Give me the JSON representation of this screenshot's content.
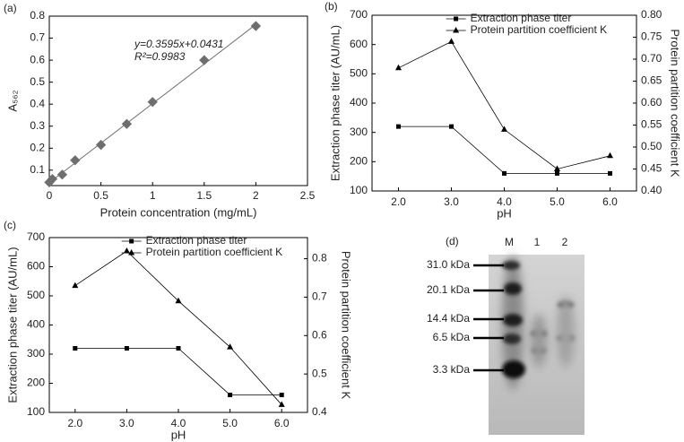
{
  "chart_data": [
    {
      "type": "scatter",
      "panel_label": "(a)",
      "x": [
        0,
        0.03,
        0.125,
        0.25,
        0.5,
        0.75,
        1,
        1.5,
        2
      ],
      "values": [
        0.045,
        0.06,
        0.08,
        0.145,
        0.215,
        0.31,
        0.41,
        0.6,
        0.755
      ],
      "color": "#6e6e6e",
      "xlim": [
        0,
        2.5
      ],
      "xticks": [
        0,
        0.5,
        1,
        1.5,
        2,
        2.5
      ],
      "ylim": [
        0.03,
        0.8
      ],
      "yticks": [
        0.1,
        0.2,
        0.3,
        0.4,
        0.5,
        0.6,
        0.7,
        0.8
      ],
      "xlabel": "Protein concentration (mg/mL)",
      "ylabel": "A₅₆₂",
      "fit": {
        "slope": 0.3595,
        "intercept": 0.0431,
        "color": "#6e6e6e"
      },
      "annotations": [
        "y=0.3595x+0.0431",
        "R²=0.9983"
      ]
    },
    {
      "type": "line",
      "panel_label": "(b)",
      "categories": [
        "2.0",
        "3.0",
        "4.0",
        "5.0",
        "6.0"
      ],
      "series": [
        {
          "name": "Extraction phase titer",
          "color": "#000000",
          "marker": "square",
          "values": [
            320,
            320,
            160,
            160,
            160
          ]
        },
        {
          "name": "Protein partition coefficient K",
          "color": "#000000",
          "marker": "triangle",
          "axis": "y2",
          "values": [
            0.68,
            0.74,
            0.54,
            0.45,
            0.48
          ]
        }
      ],
      "ylim": [
        100,
        700
      ],
      "yticks": [
        100,
        200,
        300,
        400,
        500,
        600,
        700
      ],
      "y2lim": [
        0.4,
        0.8
      ],
      "y2ticks": [
        {
          "value": 0.4,
          "label": "0.40"
        },
        {
          "value": 0.45,
          "label": "0.45"
        },
        {
          "value": 0.5,
          "label": "0.50"
        },
        {
          "value": 0.55,
          "label": "0.55"
        },
        {
          "value": 0.6,
          "label": "0.60"
        },
        {
          "value": 0.65,
          "label": "0.65"
        },
        {
          "value": 0.7,
          "label": "0.70"
        },
        {
          "value": 0.75,
          "label": "0.75"
        },
        {
          "value": 0.8,
          "label": "0.80"
        }
      ],
      "xlabel": "pH",
      "ylabel": "Extraction phase titer (AU/mL)",
      "y2label": "Protein partition coefficient K"
    },
    {
      "type": "line",
      "panel_label": "(c)",
      "categories": [
        "2.0",
        "3.0",
        "4.0",
        "5.0",
        "6.0"
      ],
      "series": [
        {
          "name": "Extraction phase titer",
          "color": "#000000",
          "marker": "square",
          "values": [
            320,
            320,
            320,
            160,
            160
          ]
        },
        {
          "name": "Protein partition coefficient K",
          "color": "#000000",
          "marker": "triangle",
          "axis": "y2",
          "values": [
            0.73,
            0.82,
            0.69,
            0.57,
            0.42
          ]
        }
      ],
      "ylim": [
        100,
        700
      ],
      "yticks": [
        100,
        200,
        300,
        400,
        500,
        600,
        700
      ],
      "y2lim": [
        0.4,
        0.855
      ],
      "y2ticks": [
        0.4,
        0.5,
        0.6,
        0.7,
        0.8
      ],
      "xlabel": "pH",
      "ylabel": "Extraction phase titer (AU/mL)",
      "y2label": "Protein partition coefficient K"
    }
  ],
  "gel": {
    "panel_label": "(d)",
    "lanes": [
      "M",
      "1",
      "2"
    ],
    "markers": [
      "31.0 kDa",
      "20.1 kDa",
      "14.4 kDa",
      "6.5 kDa",
      "3.3 kDa"
    ]
  }
}
